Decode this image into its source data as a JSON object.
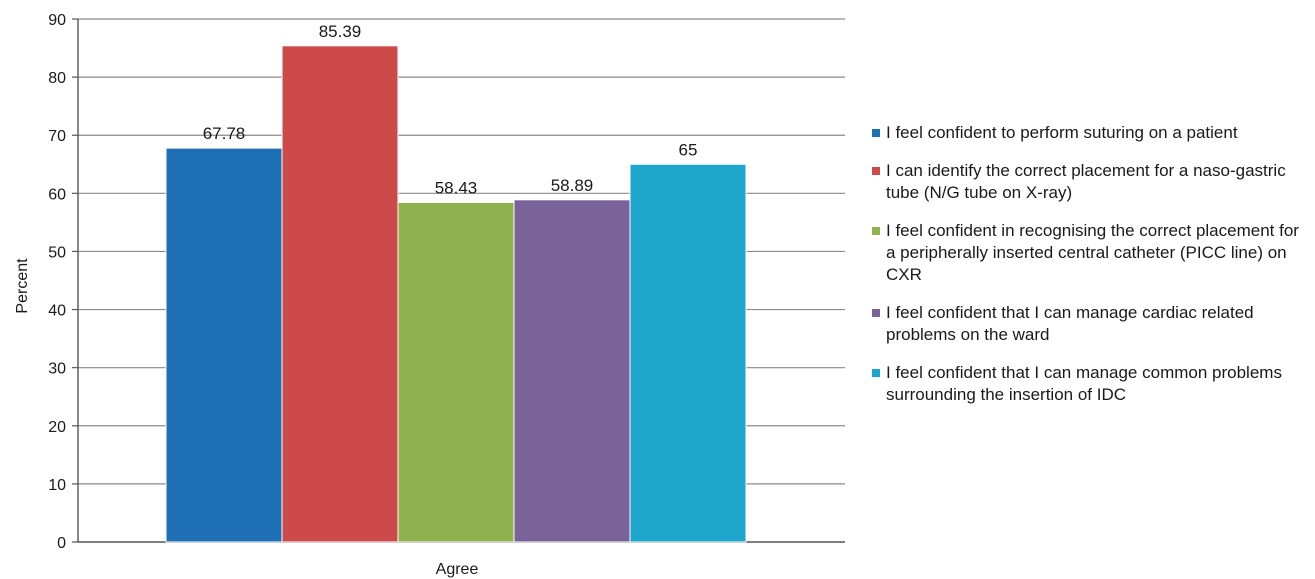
{
  "chart_data": {
    "type": "bar",
    "categories": [
      "Agree"
    ],
    "xlabel": "Agree",
    "ylabel": "Percent",
    "ylim": [
      0,
      90
    ],
    "yticks": [
      0,
      10,
      20,
      30,
      40,
      50,
      60,
      70,
      80,
      90
    ],
    "grid": true,
    "legend_position": "right",
    "series": [
      {
        "name": "I feel confident to perform suturing on a patient",
        "value": 67.78,
        "label": "67.78",
        "color": "#1f6fb4"
      },
      {
        "name": "I can identify the correct placement for a naso-gastric tube (N/G tube on X-ray)",
        "value": 85.39,
        "label": "85.39",
        "color": "#cc4a4a"
      },
      {
        "name": "I feel confident in recognising the correct placement for a peripherally inserted central catheter (PICC line) on CXR",
        "value": 58.43,
        "label": "58.43",
        "color": "#8fb24e"
      },
      {
        "name": "I feel confident that I can manage cardiac related problems on the ward",
        "value": 58.89,
        "label": "58.89",
        "color": "#7a6399"
      },
      {
        "name": "I feel confident that I can manage common problems surrounding the insertion of IDC",
        "value": 65,
        "label": "65",
        "color": "#1ea5cc"
      }
    ]
  }
}
